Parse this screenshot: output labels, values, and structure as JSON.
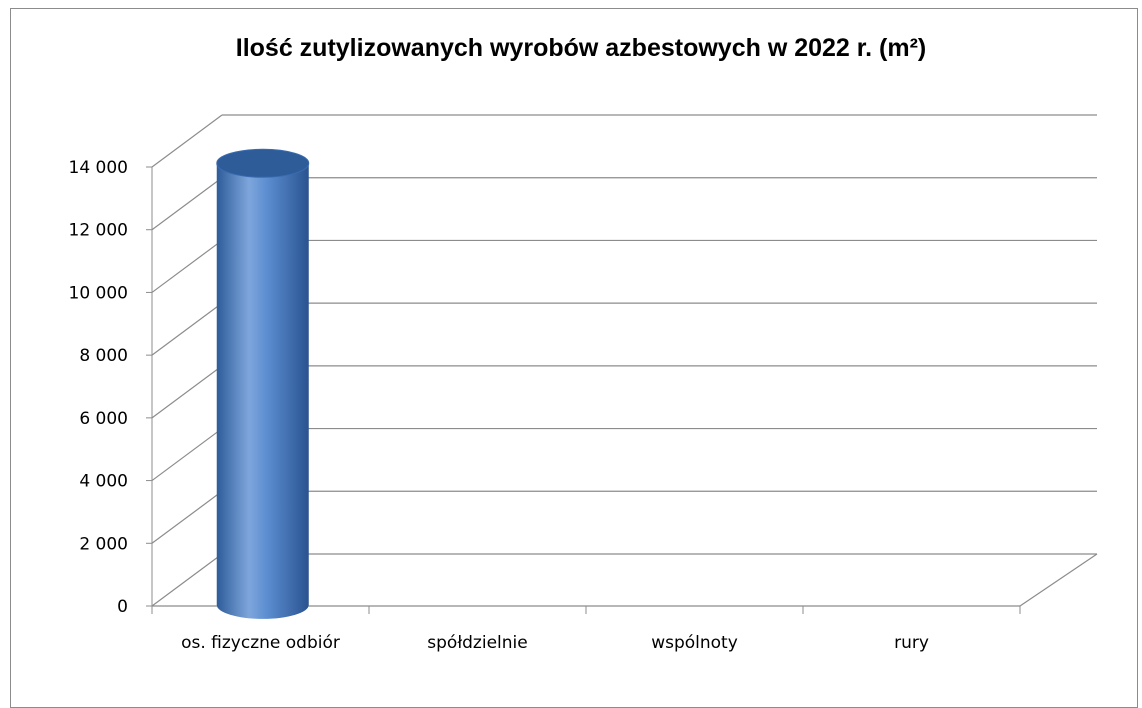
{
  "chart_data": {
    "type": "bar",
    "style": "3d-cylinder",
    "title": "Ilość zutylizowanych wyrobów azbestowych w 2022 r. (m²)",
    "categories": [
      "os. fizyczne odbiór",
      "spółdzielnie",
      "wspólnoty",
      "rury"
    ],
    "values": [
      13700,
      0,
      0,
      0
    ],
    "ylim": [
      0,
      14000
    ],
    "yticks": [
      0,
      2000,
      4000,
      6000,
      8000,
      10000,
      12000,
      14000
    ],
    "ytick_labels": [
      "0",
      "2 000",
      "4 000",
      "6 000",
      "8 000",
      "10 000",
      "12 000",
      "14 000"
    ],
    "grid": true,
    "legend": "none",
    "colors": {
      "bar": "#4f81bd",
      "bar_dark": "#2e5c99",
      "bar_light": "#7ea6dc",
      "grid": "#8c8c8c"
    }
  }
}
